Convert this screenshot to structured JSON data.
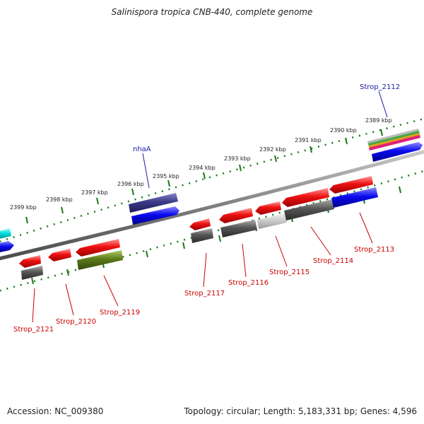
{
  "title": "Salinispora tropica CNB-440, complete genome",
  "footer": {
    "accession": "Accession: NC_009380",
    "summary": "Topology: circular; Length: 5,183,331 bp; Genes: 4,596"
  },
  "colors": {
    "ruler": "#1a7a1a",
    "backbone": "#808080",
    "forward_label": "#1a1aa6",
    "reverse_label": "#cc0000",
    "red_gene": "#ee1111",
    "blue_gene": "#0a0aee",
    "grey_gene": "#555555",
    "olive_gene": "#5a7a1a",
    "purple_gene": "#3a3a88",
    "cyan_gene": "#00dddd"
  },
  "ruler": {
    "unit": "kbp",
    "ticks": [
      {
        "kbp": 2399,
        "label": "2399 kbp"
      },
      {
        "kbp": 2398,
        "label": "2398 kbp"
      },
      {
        "kbp": 2397,
        "label": "2397 kbp"
      },
      {
        "kbp": 2396,
        "label": "2396 kbp"
      },
      {
        "kbp": 2395,
        "label": "2395 kbp"
      },
      {
        "kbp": 2394,
        "label": "2394 kbp"
      },
      {
        "kbp": 2393,
        "label": "2393 kbp"
      },
      {
        "kbp": 2392,
        "label": "2392 kbp"
      },
      {
        "kbp": 2391,
        "label": "2391 kbp"
      },
      {
        "kbp": 2390,
        "label": "2390 kbp"
      },
      {
        "kbp": 2389,
        "label": "2389 kbp"
      }
    ]
  },
  "gene_labels": [
    {
      "name": "Strop_2112",
      "strand": "forward"
    },
    {
      "name": "nhaA",
      "strand": "forward"
    },
    {
      "name": "Strop_2113",
      "strand": "reverse"
    },
    {
      "name": "Strop_2114",
      "strand": "reverse"
    },
    {
      "name": "Strop_2115",
      "strand": "reverse"
    },
    {
      "name": "Strop_2116",
      "strand": "reverse"
    },
    {
      "name": "Strop_2117",
      "strand": "reverse"
    },
    {
      "name": "Strop_2119",
      "strand": "reverse"
    },
    {
      "name": "Strop_2120",
      "strand": "reverse"
    },
    {
      "name": "Strop_2121",
      "strand": "reverse"
    }
  ]
}
